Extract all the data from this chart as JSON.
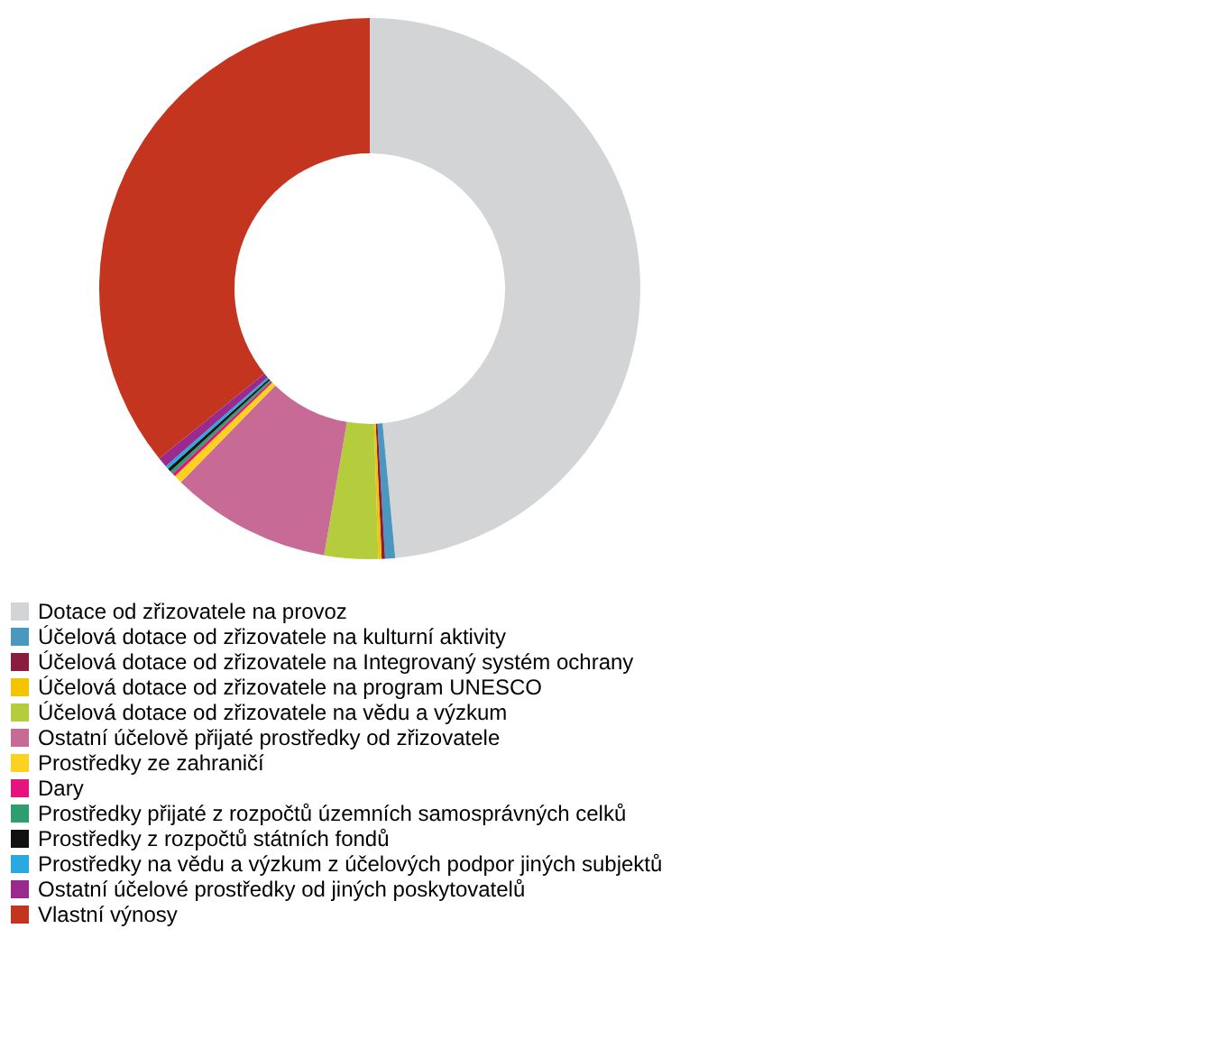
{
  "chart_data": {
    "type": "donut",
    "legend": "bottom",
    "categories": [
      "Dotace od zřizovatele na provoz",
      "Účelová dotace od zřizovatele na kulturní aktivity",
      "Účelová dotace od zřizovatele na Integrovaný systém ochrany",
      "Účelová dotace od zřizovatele na program UNESCO",
      "Účelová dotace od zřizovatele na vědu a výzkum",
      "Ostatní účelově přijaté prostředky od zřizovatele",
      "Prostředky ze zahraničí",
      "Dary",
      "Prostředky přijaté z rozpočtů územních samosprávných celků",
      "Prostředky z rozpočtů státních fondů",
      "Prostředky na vědu a výzkum z účelových podpor jiných subjektů",
      "Ostatní účelové prostředky od jiných poskytovatelů",
      "Vlastní výnosy"
    ],
    "values": [
      48.5,
      0.6,
      0.2,
      0.2,
      3.2,
      9.6,
      0.5,
      0.2,
      0.2,
      0.2,
      0.2,
      0.6,
      35.8
    ],
    "colors": [
      "#d3d4d5",
      "#4a97c0",
      "#8b1c3e",
      "#f5c400",
      "#b5cc3c",
      "#c86a96",
      "#fcd21e",
      "#e6127e",
      "#2e9e6e",
      "#111111",
      "#29a9e0",
      "#9b2a8f",
      "#c4351f"
    ]
  }
}
